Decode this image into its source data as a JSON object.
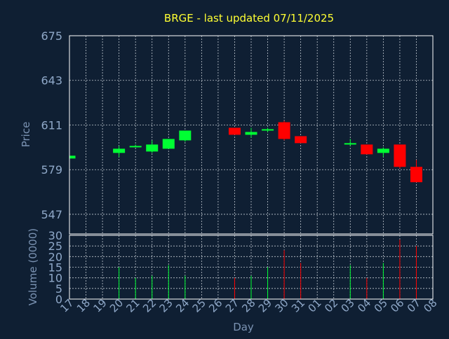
{
  "chart_data": {
    "type": "candlestick",
    "title": "BRGE - last updated 07/11/2025",
    "xlabel": "Day",
    "x_ticks": [
      "17",
      "18",
      "19",
      "20",
      "21",
      "22",
      "23",
      "24",
      "25",
      "26",
      "27",
      "28",
      "29",
      "30",
      "31",
      "01",
      "02",
      "03",
      "04",
      "05",
      "06",
      "07",
      "08"
    ],
    "price_panel": {
      "ylabel": "Price",
      "ylim": [
        547,
        675
      ],
      "y_ticks": [
        547,
        579,
        611,
        643,
        675
      ],
      "candles": [
        {
          "day": "17",
          "open": 587,
          "close": 589,
          "high": 589,
          "low": 587
        },
        {
          "day": "20",
          "open": 591,
          "close": 594,
          "high": 596,
          "low": 588
        },
        {
          "day": "21",
          "open": 595,
          "close": 596,
          "high": 597,
          "low": 595
        },
        {
          "day": "22",
          "open": 592,
          "close": 597,
          "high": 600,
          "low": 591
        },
        {
          "day": "23",
          "open": 594,
          "close": 601,
          "high": 601,
          "low": 594
        },
        {
          "day": "24",
          "open": 600,
          "close": 607,
          "high": 607,
          "low": 599
        },
        {
          "day": "27",
          "open": 609,
          "close": 604,
          "high": 609,
          "low": 604
        },
        {
          "day": "28",
          "open": 604,
          "close": 606,
          "high": 609,
          "low": 602
        },
        {
          "day": "29",
          "open": 607,
          "close": 608,
          "high": 609,
          "low": 606
        },
        {
          "day": "30",
          "open": 613,
          "close": 601,
          "high": 614,
          "low": 600
        },
        {
          "day": "31",
          "open": 603,
          "close": 598,
          "high": 603,
          "low": 598
        },
        {
          "day": "03",
          "open": 597,
          "close": 598,
          "high": 601,
          "low": 596
        },
        {
          "day": "04",
          "open": 597,
          "close": 590,
          "high": 597,
          "low": 590
        },
        {
          "day": "05",
          "open": 591,
          "close": 594,
          "high": 595,
          "low": 588
        },
        {
          "day": "06",
          "open": 597,
          "close": 581,
          "high": 597,
          "low": 580
        },
        {
          "day": "07",
          "open": 581,
          "close": 570,
          "high": 586,
          "low": 570
        }
      ]
    },
    "volume_panel": {
      "ylabel": "Volume (0000)",
      "ylim": [
        0,
        30
      ],
      "y_ticks": [
        0,
        5,
        10,
        15,
        20,
        25,
        30
      ],
      "bars": [
        {
          "day": "17",
          "value": 0,
          "up": true
        },
        {
          "day": "20",
          "value": 15,
          "up": true
        },
        {
          "day": "21",
          "value": 10,
          "up": true
        },
        {
          "day": "22",
          "value": 11,
          "up": true
        },
        {
          "day": "23",
          "value": 16,
          "up": true
        },
        {
          "day": "24",
          "value": 11,
          "up": true
        },
        {
          "day": "27",
          "value": 10,
          "up": false
        },
        {
          "day": "28",
          "value": 11,
          "up": true
        },
        {
          "day": "29",
          "value": 15,
          "up": true
        },
        {
          "day": "30",
          "value": 23,
          "up": false
        },
        {
          "day": "31",
          "value": 17,
          "up": false
        },
        {
          "day": "03",
          "value": 16,
          "up": true
        },
        {
          "day": "04",
          "value": 10,
          "up": false
        },
        {
          "day": "05",
          "value": 17,
          "up": true
        },
        {
          "day": "06",
          "value": 28,
          "up": false
        },
        {
          "day": "07",
          "value": 25,
          "up": false
        }
      ]
    },
    "colors": {
      "background": "#0f1f33",
      "frame": "#ffffff",
      "grid": "#c0c8d0",
      "text": "#8fa8c8",
      "title": "#ffff33",
      "up": "#00ff33",
      "down": "#ff0000",
      "axis_label": "#7b93b3"
    }
  }
}
